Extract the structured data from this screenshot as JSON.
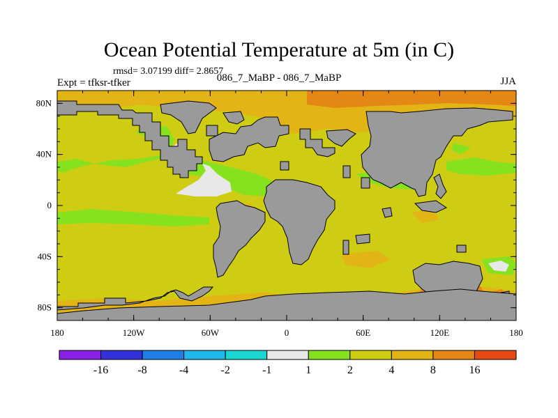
{
  "chart_data": {
    "type": "heatmap",
    "title": "Ocean Potential Temperature at 5m (in C)",
    "stats_text": "rmsd= 3.07199 diff= 2.8657",
    "subtitle": "086_7_MaBP - 086_7_MaBP",
    "experiment": "Expt = tfksr-tfker",
    "season": "JJA",
    "xaxis": {
      "range": [
        -180,
        180
      ],
      "ticks": [
        -180,
        -120,
        -60,
        0,
        60,
        120,
        180
      ],
      "tick_labels": [
        "180",
        "120W",
        "60W",
        "0",
        "60E",
        "120E",
        "180"
      ]
    },
    "yaxis": {
      "range": [
        -90,
        90
      ],
      "ticks": [
        80,
        40,
        0,
        -40,
        -80
      ],
      "tick_labels": [
        "80N",
        "40N",
        "0",
        "40S",
        "80S"
      ]
    },
    "colorbar": {
      "colors": [
        "#8a1fe6",
        "#3230d8",
        "#1f7fe6",
        "#1fb8e8",
        "#19d6d2",
        "#e8e8e8",
        "#86e21e",
        "#cfcc14",
        "#e2b415",
        "#e58714",
        "#e44a12"
      ],
      "labels": [
        "-16",
        "-8",
        "-4",
        "-2",
        "-1",
        "1",
        "2",
        "4",
        "8",
        "16"
      ]
    },
    "land_color": "#9a9a9a"
  }
}
